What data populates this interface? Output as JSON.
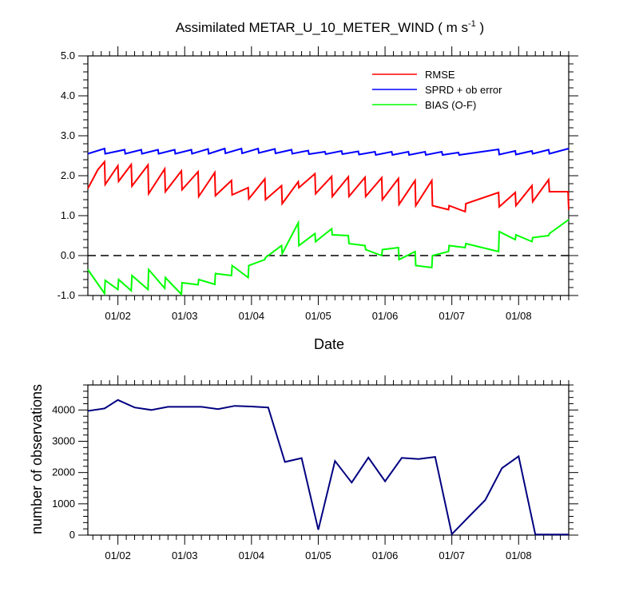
{
  "chart_data": [
    {
      "type": "line",
      "title": "Assimilated METAR_U_10_METER_WIND ( m s",
      "title_units_exp": "-1",
      "title_close": " )",
      "xlabel": "Date",
      "ylabel": "",
      "ylim": [
        -1.0,
        5.0
      ],
      "xlim": [
        1.55,
        8.75
      ],
      "yticks": [
        -1.0,
        0.0,
        1.0,
        2.0,
        3.0,
        4.0,
        5.0
      ],
      "ytick_labels": [
        "-1.0",
        "0.0",
        "1.0",
        "2.0",
        "3.0",
        "4.0",
        "5.0"
      ],
      "xticks": [
        2,
        3,
        4,
        5,
        6,
        7,
        8
      ],
      "xtick_labels": [
        "01/02",
        "01/03",
        "01/04",
        "01/05",
        "01/06",
        "01/07",
        "01/08"
      ],
      "reference_line": 0.0,
      "legend_position": "top-right",
      "series": [
        {
          "name": "RMSE",
          "color": "#ff0000",
          "x": [
            1.55,
            1.7,
            1.8,
            1.81,
            2.0,
            2.01,
            2.2,
            2.21,
            2.45,
            2.46,
            2.7,
            2.71,
            2.95,
            2.96,
            3.2,
            3.21,
            3.45,
            3.46,
            3.7,
            3.71,
            3.95,
            3.96,
            4.2,
            4.21,
            4.45,
            4.46,
            4.7,
            4.71,
            4.95,
            4.96,
            5.2,
            5.21,
            5.45,
            5.46,
            5.7,
            5.71,
            5.95,
            5.96,
            6.2,
            6.21,
            6.45,
            6.46,
            6.7,
            6.71,
            6.95,
            6.96,
            7.2,
            7.21,
            7.7,
            7.71,
            7.95,
            7.96,
            8.2,
            8.21,
            8.45,
            8.46,
            8.74,
            8.75
          ],
          "values": [
            1.68,
            2.15,
            2.35,
            1.78,
            2.25,
            1.86,
            2.28,
            1.74,
            2.27,
            1.55,
            2.17,
            1.6,
            2.12,
            1.65,
            2.1,
            1.48,
            2.08,
            1.5,
            1.88,
            1.52,
            1.7,
            1.42,
            1.92,
            1.4,
            1.75,
            1.3,
            1.85,
            1.7,
            2.05,
            1.55,
            1.98,
            1.48,
            1.97,
            1.48,
            1.96,
            1.48,
            1.95,
            1.4,
            1.93,
            1.28,
            1.88,
            1.25,
            1.88,
            1.25,
            1.15,
            1.25,
            1.1,
            1.3,
            1.58,
            1.22,
            1.58,
            1.25,
            1.75,
            1.35,
            1.9,
            1.6,
            1.6,
            1.15
          ]
        },
        {
          "name": "SPRD + ob error",
          "color": "#0000ff",
          "x": [
            1.55,
            1.8,
            1.81,
            2.1,
            2.11,
            2.35,
            2.36,
            2.6,
            2.61,
            2.85,
            2.86,
            3.1,
            3.11,
            3.35,
            3.36,
            3.6,
            3.61,
            3.85,
            3.86,
            4.1,
            4.11,
            4.35,
            4.36,
            4.6,
            4.61,
            4.85,
            4.86,
            5.1,
            5.11,
            5.35,
            5.36,
            5.6,
            5.61,
            5.85,
            5.86,
            6.1,
            6.11,
            6.35,
            6.36,
            6.6,
            6.61,
            6.85,
            6.86,
            7.1,
            7.11,
            7.7,
            7.71,
            7.95,
            7.96,
            8.2,
            8.21,
            8.45,
            8.46,
            8.75
          ],
          "values": [
            2.55,
            2.68,
            2.55,
            2.65,
            2.55,
            2.65,
            2.55,
            2.65,
            2.55,
            2.65,
            2.55,
            2.65,
            2.55,
            2.67,
            2.55,
            2.68,
            2.56,
            2.68,
            2.56,
            2.68,
            2.57,
            2.67,
            2.56,
            2.65,
            2.55,
            2.63,
            2.54,
            2.6,
            2.54,
            2.62,
            2.54,
            2.61,
            2.53,
            2.6,
            2.52,
            2.6,
            2.52,
            2.6,
            2.52,
            2.6,
            2.52,
            2.6,
            2.52,
            2.58,
            2.52,
            2.66,
            2.53,
            2.62,
            2.53,
            2.62,
            2.55,
            2.65,
            2.55,
            2.68
          ]
        },
        {
          "name": "BIAS (O-F)",
          "color": "#00ff00",
          "x": [
            1.55,
            1.8,
            1.81,
            2.0,
            2.01,
            2.2,
            2.21,
            2.45,
            2.46,
            2.7,
            2.71,
            2.95,
            2.96,
            3.2,
            3.21,
            3.45,
            3.46,
            3.7,
            3.71,
            3.95,
            3.96,
            4.2,
            4.21,
            4.45,
            4.46,
            4.7,
            4.71,
            4.95,
            4.96,
            5.2,
            5.21,
            5.45,
            5.46,
            5.7,
            5.71,
            5.95,
            5.96,
            6.2,
            6.21,
            6.45,
            6.46,
            6.7,
            6.71,
            6.95,
            6.96,
            7.2,
            7.21,
            7.7,
            7.71,
            7.95,
            7.96,
            8.2,
            8.21,
            8.45,
            8.46,
            8.75
          ],
          "values": [
            -0.35,
            -0.95,
            -0.62,
            -0.85,
            -0.6,
            -0.88,
            -0.5,
            -0.85,
            -0.35,
            -0.82,
            -0.55,
            -0.97,
            -0.68,
            -0.73,
            -0.6,
            -0.72,
            -0.45,
            -0.5,
            -0.25,
            -0.55,
            -0.25,
            -0.1,
            -0.05,
            0.25,
            0.05,
            0.82,
            0.25,
            0.55,
            0.35,
            0.67,
            0.52,
            0.5,
            0.3,
            0.25,
            0.15,
            0.0,
            0.15,
            0.2,
            -0.1,
            0.1,
            -0.25,
            -0.3,
            0.0,
            0.1,
            0.25,
            0.2,
            0.3,
            0.1,
            0.6,
            0.4,
            0.52,
            0.35,
            0.45,
            0.5,
            0.55,
            0.9
          ]
        }
      ]
    },
    {
      "type": "line",
      "title": "",
      "xlabel": "",
      "ylabel": "number of observations",
      "ylim": [
        0,
        4800
      ],
      "xlim": [
        1.55,
        8.75
      ],
      "yticks": [
        0,
        1000,
        2000,
        3000,
        4000
      ],
      "ytick_labels": [
        "0",
        "1000",
        "2000",
        "3000",
        "4000"
      ],
      "xticks": [
        2,
        3,
        4,
        5,
        6,
        7,
        8
      ],
      "xtick_labels": [
        "01/02",
        "01/03",
        "01/04",
        "01/05",
        "01/06",
        "01/07",
        "01/08"
      ],
      "series": [
        {
          "name": "number of observations",
          "color": "#000080",
          "x": [
            1.55,
            1.8,
            2.0,
            2.25,
            2.5,
            2.75,
            3.0,
            3.25,
            3.5,
            3.75,
            4.0,
            4.25,
            4.5,
            4.75,
            5.0,
            5.25,
            5.5,
            5.75,
            6.0,
            6.25,
            6.5,
            6.75,
            7.0,
            7.25,
            7.5,
            7.75,
            8.0,
            8.25,
            8.5,
            8.75
          ],
          "values": [
            3970,
            4050,
            4320,
            4080,
            4000,
            4100,
            4100,
            4100,
            4030,
            4130,
            4110,
            4080,
            2340,
            2460,
            170,
            2370,
            1680,
            2480,
            1720,
            2470,
            2430,
            2500,
            30,
            580,
            1120,
            2140,
            2520,
            20,
            20,
            20
          ]
        }
      ]
    }
  ],
  "legend": [
    {
      "label": "RMSE",
      "color": "#ff0000"
    },
    {
      "label": "SPRD + ob error",
      "color": "#0000ff"
    },
    {
      "label": "BIAS (O-F)",
      "color": "#00ff00"
    }
  ]
}
